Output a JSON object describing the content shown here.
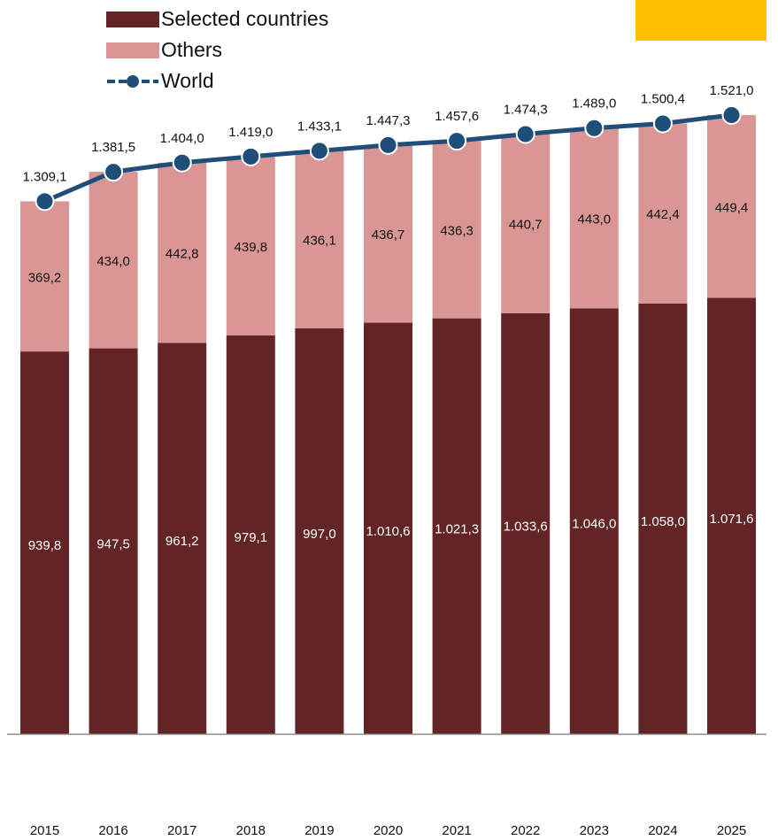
{
  "colors": {
    "selected": "#632425",
    "others": "#d99694",
    "world": "#1f4e79",
    "logo": "#ffc000",
    "axis": "#888888"
  },
  "legend": {
    "selected": "Selected countries",
    "others": "Others",
    "world": "World"
  },
  "chart_data": {
    "type": "bar",
    "stacked": true,
    "categories": [
      "2015",
      "2016",
      "2017",
      "2018",
      "2019",
      "2020",
      "2021",
      "2022",
      "2023",
      "2024",
      "2025"
    ],
    "series": [
      {
        "name": "Selected countries",
        "kind": "bar",
        "values": [
          939.8,
          947.5,
          961.2,
          979.1,
          997.0,
          1010.6,
          1021.3,
          1033.6,
          1046.0,
          1058.0,
          1071.6
        ],
        "labels": [
          "939,8",
          "947,5",
          "961,2",
          "979,1",
          "997,0",
          "1.010,6",
          "1.021,3",
          "1.033,6",
          "1.046,0",
          "1.058,0",
          "1.071,6"
        ]
      },
      {
        "name": "Others",
        "kind": "bar",
        "values": [
          369.2,
          434.0,
          442.8,
          439.8,
          436.1,
          436.7,
          436.3,
          440.7,
          443.0,
          442.4,
          449.4
        ],
        "labels": [
          "369,2",
          "434,0",
          "442,8",
          "439,8",
          "436,1",
          "436,7",
          "436,3",
          "440,7",
          "443,0",
          "442,4",
          "449,4"
        ]
      },
      {
        "name": "World",
        "kind": "line",
        "values": [
          1309.1,
          1381.5,
          1404.0,
          1419.0,
          1433.1,
          1447.3,
          1457.6,
          1474.3,
          1489.0,
          1500.4,
          1521.0
        ],
        "labels": [
          "1.309,1",
          "1.381,5",
          "1.404,0",
          "1.419,0",
          "1.433,1",
          "1.447,3",
          "1.457,6",
          "1.474,3",
          "1.489,0",
          "1.500,4",
          "1.521,0"
        ]
      }
    ],
    "ylim": [
      0,
      1521
    ],
    "grid": false,
    "legend_position": "top-left"
  }
}
